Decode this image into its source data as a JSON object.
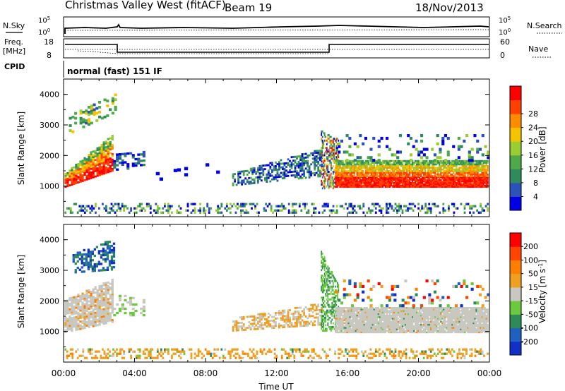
{
  "header": {
    "title": "Christmas Valley West (fitACF)",
    "beam": "Beam 19",
    "date": "18/Nov/2013"
  },
  "panels": {
    "nsky": {
      "label": "N.Sky",
      "right_label": "N.Search",
      "ticks_left": [
        "10^5",
        "10^0"
      ],
      "ticks_right": [
        "10^5",
        "10^0"
      ]
    },
    "freq": {
      "label_line1": "Freq.",
      "label_line2": "[MHz]",
      "ticks_left": [
        "18",
        "8"
      ],
      "ticks_right": [
        "60",
        "0"
      ],
      "right_label": "Nave"
    },
    "cpid": {
      "label": "CPID",
      "text": "normal (fast) 151 IF"
    }
  },
  "colors": {
    "power": [
      "#0000e6",
      "#2a52b8",
      "#2f8a5c",
      "#4fa84a",
      "#9acd32",
      "#f5c400",
      "#ff8c00",
      "#ff4000",
      "#ff0000"
    ],
    "velocity": [
      "#1030c8",
      "#2060c0",
      "#2e8b57",
      "#6ac93c",
      "#c8c8c0",
      "#f0a020",
      "#ff8000",
      "#ff4500",
      "#ff0000"
    ]
  },
  "chart_data": [
    {
      "type": "heatmap",
      "name": "power",
      "xlabel": "",
      "ylabel": "Slant Range [km]",
      "x_range": [
        "00:00",
        "24:00"
      ],
      "ylim": [
        0,
        4500
      ],
      "yticks": [
        "1000",
        "2000",
        "3000",
        "4000"
      ],
      "colorbar": {
        "label": "Power [dB]",
        "ticks": [
          "4",
          "8",
          "12",
          "16",
          "20",
          "24",
          "28"
        ]
      }
    },
    {
      "type": "heatmap",
      "name": "velocity",
      "xlabel": "Time UT",
      "ylabel": "Slant Range [km]",
      "x_range": [
        "00:00",
        "24:00"
      ],
      "ylim": [
        0,
        4500
      ],
      "xticks": [
        "00:00",
        "04:00",
        "08:00",
        "12:00",
        "16:00",
        "20:00",
        "00:00"
      ],
      "yticks": [
        "1000",
        "2000",
        "3000",
        "4000"
      ],
      "colorbar": {
        "label": "Velocity [m s^-1]",
        "ticks": [
          "200",
          "100",
          "50",
          "15",
          "-15",
          "-50",
          "-100",
          "-200"
        ]
      }
    }
  ]
}
